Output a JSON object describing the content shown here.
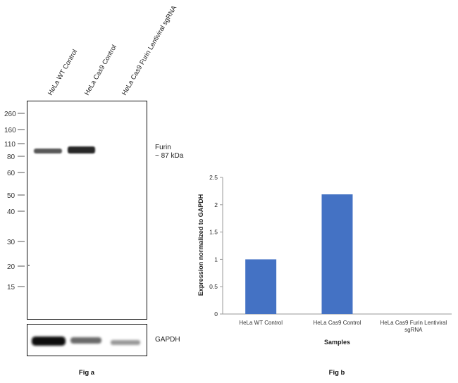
{
  "fig_a": {
    "caption": "Fig a",
    "lanes": [
      "HeLa WT Control",
      "HeLa Cas9 Control",
      "HeLa Cas9 Furin Lentiviral sgRNA"
    ],
    "mw_markers": [
      "260",
      "160",
      "110",
      "80",
      "60",
      "50",
      "40",
      "30",
      "20",
      "15"
    ],
    "target_label": "Furin",
    "target_size": "~ 87 kDa",
    "loading_control": "GAPDH"
  },
  "chart_data": {
    "type": "bar",
    "categories": [
      "HeLa WT Control",
      "HeLa Cas9 Control",
      "HeLa Cas9 Furin Lentiviral sgRNA"
    ],
    "category_lines": [
      [
        "HeLa WT Control"
      ],
      [
        "HeLa Cas9 Control"
      ],
      [
        "HeLa Cas9 Furin Lentiviral",
        "sgRNA"
      ]
    ],
    "values": [
      1.0,
      2.19,
      0.0
    ],
    "xlabel": "Samples",
    "ylabel": "Expression normalized to GAPDH",
    "ylim": [
      0,
      2.5
    ],
    "yticks": [
      "0",
      "0.5",
      "1",
      "1.5",
      "2",
      "2.5"
    ],
    "caption": "Fig b",
    "bar_color": "#4472c4",
    "grid": false
  }
}
